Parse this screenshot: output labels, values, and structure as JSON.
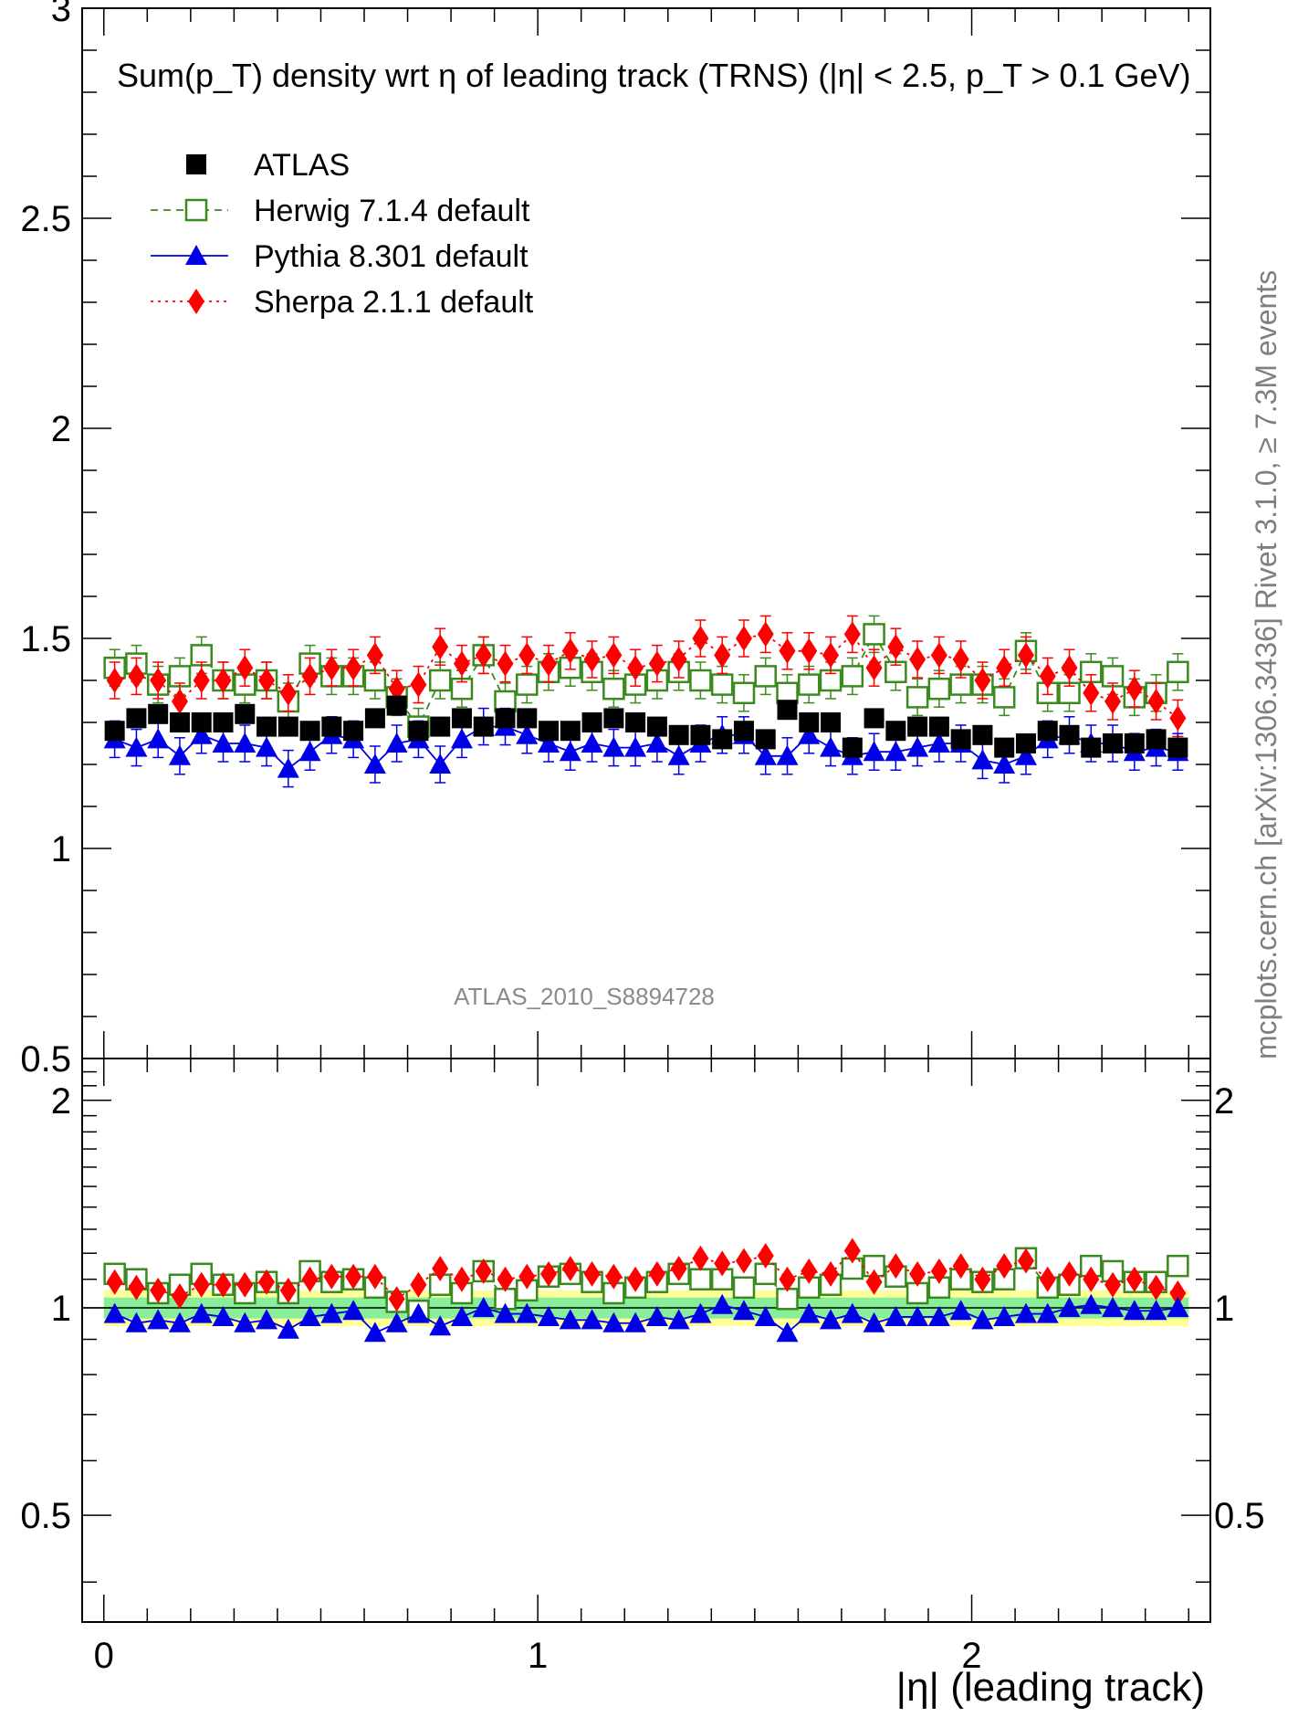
{
  "chart_data": {
    "type": "scatter",
    "title": "Sum(p_T) density wrt η of leading track (TRNS) (|η| < 2.5, p_T > 0.1 GeV)",
    "xlabel": "|η| (leading track)",
    "ylabel": "",
    "xlim": [
      -0.05,
      2.55
    ],
    "main_ylim": [
      0.5,
      3.0
    ],
    "ratio_ylim": [
      0.35,
      2.3
    ],
    "main_yticks": [
      "0.5",
      "1",
      "1.5",
      "2",
      "2.5",
      "3"
    ],
    "main_ytick_values": [
      0.5,
      1,
      1.5,
      2,
      2.5,
      3
    ],
    "ratio_yticks": [
      "0.5",
      "1",
      "2"
    ],
    "ratio_ytick_values": [
      0.5,
      1,
      2
    ],
    "xticks": [
      "0",
      "1",
      "2"
    ],
    "xtick_values": [
      0,
      1,
      2
    ],
    "side_label": "mcplots.cern.ch [arXiv:1306.3436]      Rivet 3.1.0,  ≥ 7.3M events",
    "watermark": "ATLAS_2010_S8894728",
    "legend_position": "top-left",
    "x": [
      0.025,
      0.075,
      0.125,
      0.175,
      0.225,
      0.275,
      0.325,
      0.375,
      0.425,
      0.475,
      0.525,
      0.575,
      0.625,
      0.675,
      0.725,
      0.775,
      0.825,
      0.875,
      0.925,
      0.975,
      1.025,
      1.075,
      1.125,
      1.175,
      1.225,
      1.275,
      1.325,
      1.375,
      1.425,
      1.475,
      1.525,
      1.575,
      1.625,
      1.675,
      1.725,
      1.775,
      1.825,
      1.875,
      1.925,
      1.975,
      2.025,
      2.075,
      2.125,
      2.175,
      2.225,
      2.275,
      2.325,
      2.375,
      2.425,
      2.475
    ],
    "series": [
      {
        "name": "ATLAS",
        "marker": "filled-square",
        "color": "#000000",
        "values": [
          1.28,
          1.31,
          1.32,
          1.3,
          1.3,
          1.3,
          1.32,
          1.29,
          1.29,
          1.28,
          1.29,
          1.28,
          1.31,
          1.34,
          1.28,
          1.29,
          1.31,
          1.29,
          1.31,
          1.31,
          1.28,
          1.28,
          1.3,
          1.31,
          1.3,
          1.29,
          1.27,
          1.27,
          1.26,
          1.28,
          1.26,
          1.33,
          1.3,
          1.3,
          1.24,
          1.31,
          1.28,
          1.29,
          1.29,
          1.26,
          1.27,
          1.24,
          1.25,
          1.28,
          1.27,
          1.24,
          1.25,
          1.25,
          1.26,
          1.24
        ],
        "ratio": [
          1,
          1,
          1,
          1,
          1,
          1,
          1,
          1,
          1,
          1,
          1,
          1,
          1,
          1,
          1,
          1,
          1,
          1,
          1,
          1,
          1,
          1,
          1,
          1,
          1,
          1,
          1,
          1,
          1,
          1,
          1,
          1,
          1,
          1,
          1,
          1,
          1,
          1,
          1,
          1,
          1,
          1,
          1,
          1,
          1,
          1,
          1,
          1,
          1,
          1
        ]
      },
      {
        "name": "Herwig 7.1.4 default",
        "marker": "open-square",
        "line": "dashed",
        "color": "#3a8a1e",
        "values": [
          1.43,
          1.44,
          1.39,
          1.41,
          1.46,
          1.4,
          1.39,
          1.4,
          1.35,
          1.44,
          1.41,
          1.41,
          1.4,
          1.36,
          1.29,
          1.4,
          1.38,
          1.46,
          1.35,
          1.39,
          1.42,
          1.43,
          1.42,
          1.38,
          1.39,
          1.4,
          1.42,
          1.4,
          1.39,
          1.37,
          1.41,
          1.37,
          1.39,
          1.4,
          1.41,
          1.51,
          1.42,
          1.36,
          1.38,
          1.39,
          1.39,
          1.36,
          1.47,
          1.37,
          1.37,
          1.42,
          1.41,
          1.36,
          1.37,
          1.42
        ],
        "ratio": [
          1.12,
          1.1,
          1.05,
          1.08,
          1.12,
          1.08,
          1.05,
          1.09,
          1.05,
          1.13,
          1.09,
          1.1,
          1.07,
          1.02,
          0.99,
          1.08,
          1.05,
          1.13,
          1.03,
          1.06,
          1.11,
          1.12,
          1.09,
          1.05,
          1.07,
          1.09,
          1.12,
          1.1,
          1.1,
          1.07,
          1.12,
          1.03,
          1.07,
          1.08,
          1.14,
          1.15,
          1.11,
          1.05,
          1.07,
          1.1,
          1.09,
          1.1,
          1.18,
          1.07,
          1.08,
          1.15,
          1.13,
          1.09,
          1.09,
          1.15
        ]
      },
      {
        "name": "Pythia 8.301 default",
        "marker": "filled-triangle",
        "line": "solid",
        "color": "#0000e6",
        "values": [
          1.26,
          1.24,
          1.26,
          1.22,
          1.27,
          1.25,
          1.25,
          1.24,
          1.19,
          1.23,
          1.27,
          1.26,
          1.2,
          1.25,
          1.26,
          1.2,
          1.26,
          1.29,
          1.29,
          1.27,
          1.25,
          1.23,
          1.25,
          1.24,
          1.24,
          1.25,
          1.22,
          1.25,
          1.27,
          1.27,
          1.22,
          1.22,
          1.27,
          1.24,
          1.22,
          1.23,
          1.23,
          1.24,
          1.25,
          1.25,
          1.21,
          1.2,
          1.22,
          1.26,
          1.27,
          1.25,
          1.25,
          1.23,
          1.24,
          1.23
        ],
        "ratio": [
          0.98,
          0.95,
          0.96,
          0.95,
          0.98,
          0.97,
          0.95,
          0.96,
          0.93,
          0.97,
          0.98,
          0.99,
          0.92,
          0.95,
          0.98,
          0.94,
          0.97,
          1.0,
          0.98,
          0.98,
          0.97,
          0.96,
          0.96,
          0.95,
          0.95,
          0.97,
          0.96,
          0.98,
          1.01,
          0.99,
          0.97,
          0.92,
          0.98,
          0.96,
          0.98,
          0.95,
          0.97,
          0.97,
          0.97,
          0.99,
          0.96,
          0.97,
          0.98,
          0.98,
          1.0,
          1.01,
          1.0,
          0.99,
          0.99,
          1.0
        ]
      },
      {
        "name": "Sherpa 2.1.1 default",
        "marker": "filled-diamond",
        "line": "dotted",
        "color": "#ff0000",
        "values": [
          1.4,
          1.41,
          1.4,
          1.35,
          1.4,
          1.4,
          1.43,
          1.4,
          1.37,
          1.41,
          1.43,
          1.43,
          1.46,
          1.38,
          1.39,
          1.48,
          1.44,
          1.46,
          1.44,
          1.46,
          1.44,
          1.47,
          1.45,
          1.46,
          1.43,
          1.44,
          1.45,
          1.5,
          1.46,
          1.5,
          1.51,
          1.47,
          1.47,
          1.46,
          1.51,
          1.43,
          1.48,
          1.45,
          1.46,
          1.45,
          1.4,
          1.43,
          1.46,
          1.41,
          1.43,
          1.37,
          1.35,
          1.38,
          1.35,
          1.31
        ],
        "ratio": [
          1.09,
          1.07,
          1.06,
          1.04,
          1.08,
          1.08,
          1.08,
          1.09,
          1.06,
          1.1,
          1.11,
          1.11,
          1.11,
          1.03,
          1.08,
          1.14,
          1.1,
          1.13,
          1.1,
          1.11,
          1.12,
          1.14,
          1.12,
          1.11,
          1.1,
          1.12,
          1.14,
          1.18,
          1.16,
          1.17,
          1.19,
          1.1,
          1.13,
          1.12,
          1.21,
          1.09,
          1.15,
          1.12,
          1.13,
          1.15,
          1.1,
          1.15,
          1.17,
          1.1,
          1.12,
          1.1,
          1.08,
          1.1,
          1.07,
          1.05
        ]
      }
    ],
    "ratio_bands": [
      {
        "name": "total-uncertainty",
        "color": "#ffff99",
        "lo": 0.94,
        "hi": 1.06
      },
      {
        "name": "stat-uncertainty",
        "color": "#88ee99",
        "lo": 0.965,
        "hi": 1.035
      }
    ]
  }
}
